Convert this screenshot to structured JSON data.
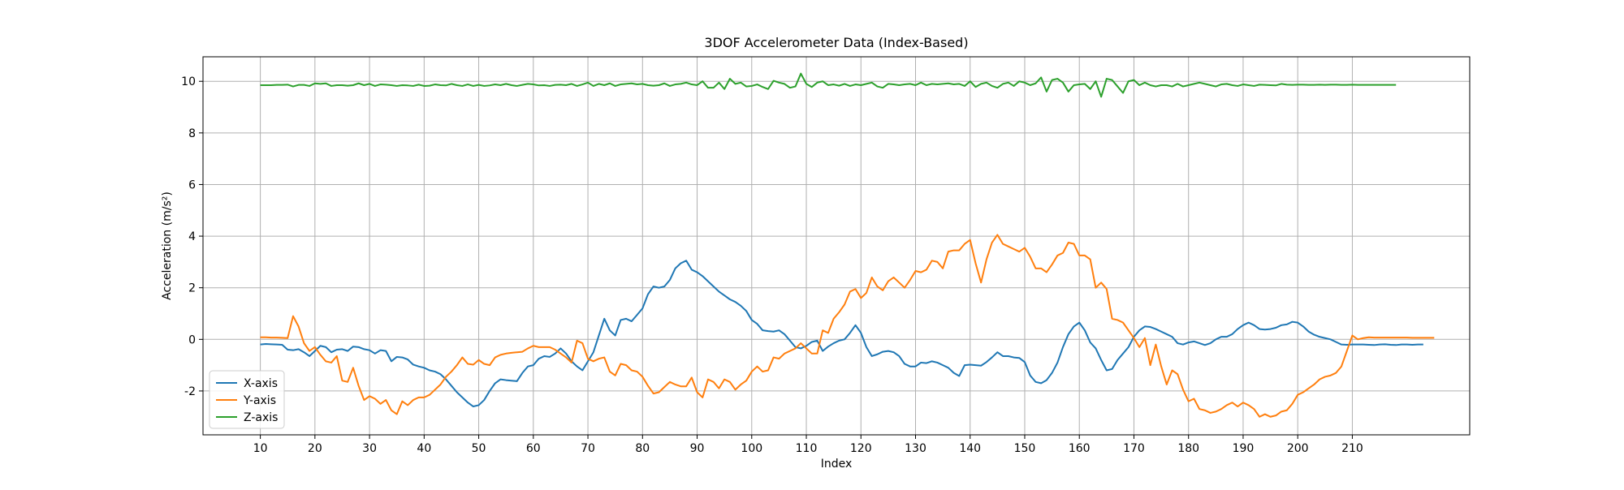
{
  "chart_data": {
    "type": "line",
    "title": "3DOF Accelerometer Data (Index-Based)",
    "xlabel": "Index",
    "ylabel": "Acceleration (m/s²)",
    "xlim": [
      -0.5,
      231.5
    ],
    "ylim": [
      -3.7,
      10.95
    ],
    "x_ticks": [
      10,
      20,
      30,
      40,
      50,
      60,
      70,
      80,
      90,
      100,
      110,
      120,
      130,
      140,
      150,
      160,
      170,
      180,
      190,
      200,
      210
    ],
    "y_ticks": [
      -2,
      0,
      2,
      4,
      6,
      8,
      10
    ],
    "grid": true,
    "legend_position": "lower-left",
    "x_start": 10,
    "series": [
      {
        "name": "X-axis",
        "color": "#1f77b4",
        "values": [
          -0.2,
          -0.18,
          -0.19,
          -0.2,
          -0.21,
          -0.4,
          -0.42,
          -0.38,
          -0.5,
          -0.65,
          -0.45,
          -0.25,
          -0.3,
          -0.5,
          -0.4,
          -0.38,
          -0.45,
          -0.28,
          -0.3,
          -0.38,
          -0.42,
          -0.55,
          -0.42,
          -0.45,
          -0.85,
          -0.68,
          -0.7,
          -0.78,
          -0.98,
          -1.05,
          -1.1,
          -1.2,
          -1.25,
          -1.35,
          -1.55,
          -1.8,
          -2.05,
          -2.25,
          -2.45,
          -2.6,
          -2.55,
          -2.35,
          -2.0,
          -1.7,
          -1.55,
          -1.58,
          -1.6,
          -1.62,
          -1.3,
          -1.05,
          -1.0,
          -0.75,
          -0.65,
          -0.68,
          -0.55,
          -0.35,
          -0.55,
          -0.85,
          -1.05,
          -1.2,
          -0.85,
          -0.5,
          0.15,
          0.8,
          0.35,
          0.15,
          0.75,
          0.8,
          0.7,
          0.95,
          1.2,
          1.75,
          2.05,
          2.0,
          2.05,
          2.3,
          2.75,
          2.95,
          3.05,
          2.7,
          2.6,
          2.45,
          2.25,
          2.05,
          1.85,
          1.7,
          1.55,
          1.45,
          1.3,
          1.1,
          0.75,
          0.6,
          0.35,
          0.32,
          0.3,
          0.35,
          0.2,
          -0.05,
          -0.3,
          -0.35,
          -0.25,
          -0.1,
          -0.05,
          -0.45,
          -0.28,
          -0.15,
          -0.05,
          0.0,
          0.25,
          0.55,
          0.25,
          -0.3,
          -0.65,
          -0.58,
          -0.48,
          -0.45,
          -0.5,
          -0.65,
          -0.95,
          -1.05,
          -1.05,
          -0.9,
          -0.92,
          -0.85,
          -0.9,
          -1.0,
          -1.1,
          -1.3,
          -1.42,
          -1.0,
          -0.98,
          -1.0,
          -1.02,
          -0.88,
          -0.7,
          -0.5,
          -0.65,
          -0.65,
          -0.7,
          -0.72,
          -0.88,
          -1.4,
          -1.65,
          -1.7,
          -1.58,
          -1.3,
          -0.9,
          -0.3,
          0.2,
          0.5,
          0.65,
          0.35,
          -0.12,
          -0.35,
          -0.8,
          -1.2,
          -1.15,
          -0.8,
          -0.55,
          -0.3,
          0.1,
          0.35,
          0.5,
          0.48,
          0.4,
          0.3,
          0.2,
          0.1,
          -0.15,
          -0.2,
          -0.12,
          -0.08,
          -0.15,
          -0.22,
          -0.15,
          0.0,
          0.1,
          0.1,
          0.2,
          0.4,
          0.55,
          0.65,
          0.55,
          0.4,
          0.38,
          0.4,
          0.45,
          0.55,
          0.58,
          0.68,
          0.65,
          0.5,
          0.3,
          0.18,
          0.1,
          0.05,
          0.0,
          -0.1,
          -0.2,
          -0.21,
          -0.2,
          -0.2,
          -0.2,
          -0.21,
          -0.22,
          -0.2,
          -0.19,
          -0.21,
          -0.22,
          -0.2,
          -0.2,
          -0.21,
          -0.2,
          -0.2
        ]
      },
      {
        "name": "Y-axis",
        "color": "#ff7f0e",
        "values": [
          0.08,
          0.08,
          0.07,
          0.07,
          0.06,
          0.05,
          0.9,
          0.5,
          -0.15,
          -0.45,
          -0.3,
          -0.6,
          -0.85,
          -0.9,
          -0.65,
          -1.6,
          -1.65,
          -1.1,
          -1.8,
          -2.35,
          -2.2,
          -2.3,
          -2.5,
          -2.35,
          -2.75,
          -2.9,
          -2.4,
          -2.55,
          -2.35,
          -2.25,
          -2.25,
          -2.15,
          -1.95,
          -1.75,
          -1.45,
          -1.25,
          -1.0,
          -0.7,
          -0.95,
          -0.98,
          -0.8,
          -0.95,
          -1.0,
          -0.7,
          -0.6,
          -0.55,
          -0.52,
          -0.5,
          -0.48,
          -0.35,
          -0.25,
          -0.3,
          -0.3,
          -0.3,
          -0.4,
          -0.55,
          -0.7,
          -0.9,
          -0.05,
          -0.15,
          -0.75,
          -0.85,
          -0.75,
          -0.7,
          -1.25,
          -1.4,
          -0.95,
          -1.0,
          -1.2,
          -1.25,
          -1.45,
          -1.8,
          -2.1,
          -2.05,
          -1.85,
          -1.65,
          -1.75,
          -1.82,
          -1.82,
          -1.48,
          -2.05,
          -2.25,
          -1.55,
          -1.65,
          -1.9,
          -1.55,
          -1.65,
          -1.95,
          -1.75,
          -1.6,
          -1.25,
          -1.05,
          -1.25,
          -1.2,
          -0.7,
          -0.75,
          -0.55,
          -0.45,
          -0.35,
          -0.15,
          -0.35,
          -0.55,
          -0.55,
          0.35,
          0.25,
          0.8,
          1.05,
          1.35,
          1.85,
          1.95,
          1.6,
          1.8,
          2.4,
          2.05,
          1.9,
          2.25,
          2.4,
          2.2,
          2.0,
          2.3,
          2.65,
          2.6,
          2.7,
          3.05,
          3.0,
          2.75,
          3.4,
          3.45,
          3.45,
          3.7,
          3.85,
          2.95,
          2.2,
          3.1,
          3.75,
          4.05,
          3.7,
          3.6,
          3.5,
          3.4,
          3.55,
          3.2,
          2.75,
          2.75,
          2.6,
          2.9,
          3.25,
          3.35,
          3.75,
          3.7,
          3.25,
          3.25,
          3.1,
          2.0,
          2.2,
          1.95,
          0.8,
          0.75,
          0.65,
          0.35,
          0.05,
          -0.3,
          0.05,
          -1.0,
          -0.2,
          -1.05,
          -1.75,
          -1.2,
          -1.35,
          -1.95,
          -2.4,
          -2.3,
          -2.7,
          -2.75,
          -2.85,
          -2.8,
          -2.7,
          -2.55,
          -2.45,
          -2.6,
          -2.45,
          -2.55,
          -2.7,
          -3.0,
          -2.9,
          -3.0,
          -2.95,
          -2.8,
          -2.75,
          -2.5,
          -2.15,
          -2.05,
          -1.9,
          -1.75,
          -1.55,
          -1.45,
          -1.4,
          -1.3,
          -1.05,
          -0.45,
          0.15,
          0.0,
          0.05,
          0.08,
          0.07,
          0.07,
          0.07,
          0.07,
          0.07,
          0.07,
          0.07,
          0.06,
          0.06,
          0.06,
          0.06,
          0.06
        ]
      },
      {
        "name": "Z-axis",
        "color": "#2ca02c",
        "values": [
          9.85,
          9.85,
          9.85,
          9.86,
          9.86,
          9.87,
          9.8,
          9.86,
          9.86,
          9.82,
          9.92,
          9.9,
          9.92,
          9.82,
          9.85,
          9.85,
          9.83,
          9.85,
          9.92,
          9.85,
          9.9,
          9.82,
          9.88,
          9.87,
          9.85,
          9.82,
          9.85,
          9.84,
          9.82,
          9.87,
          9.82,
          9.83,
          9.88,
          9.85,
          9.84,
          9.9,
          9.85,
          9.82,
          9.88,
          9.82,
          9.86,
          9.82,
          9.84,
          9.88,
          9.85,
          9.9,
          9.85,
          9.82,
          9.86,
          9.9,
          9.88,
          9.84,
          9.85,
          9.82,
          9.86,
          9.87,
          9.85,
          9.9,
          9.82,
          9.88,
          9.95,
          9.82,
          9.9,
          9.85,
          9.92,
          9.82,
          9.88,
          9.9,
          9.92,
          9.88,
          9.9,
          9.85,
          9.83,
          9.85,
          9.92,
          9.82,
          9.88,
          9.9,
          9.95,
          9.88,
          9.85,
          10.0,
          9.75,
          9.75,
          9.95,
          9.7,
          10.1,
          9.9,
          9.95,
          9.8,
          9.82,
          9.88,
          9.78,
          9.7,
          10.02,
          9.95,
          9.9,
          9.75,
          9.8,
          10.3,
          9.9,
          9.78,
          9.95,
          10.0,
          9.85,
          9.88,
          9.83,
          9.9,
          9.82,
          9.88,
          9.85,
          9.9,
          9.95,
          9.8,
          9.75,
          9.9,
          9.88,
          9.85,
          9.88,
          9.9,
          9.85,
          9.95,
          9.85,
          9.9,
          9.88,
          9.9,
          9.92,
          9.88,
          9.9,
          9.82,
          10.0,
          9.78,
          9.9,
          9.95,
          9.82,
          9.75,
          9.9,
          9.95,
          9.82,
          10.0,
          9.95,
          9.85,
          9.92,
          10.15,
          9.6,
          10.05,
          10.1,
          9.95,
          9.6,
          9.85,
          9.88,
          9.9,
          9.7,
          10.0,
          9.4,
          10.1,
          10.05,
          9.8,
          9.55,
          10.0,
          10.05,
          9.85,
          9.95,
          9.85,
          9.8,
          9.85,
          9.85,
          9.8,
          9.9,
          9.8,
          9.85,
          9.9,
          9.95,
          9.9,
          9.85,
          9.8,
          9.88,
          9.9,
          9.85,
          9.82,
          9.88,
          9.85,
          9.82,
          9.87,
          9.86,
          9.85,
          9.84,
          9.9,
          9.87,
          9.86,
          9.87,
          9.87,
          9.86,
          9.86,
          9.87,
          9.86,
          9.87,
          9.87,
          9.86,
          9.86,
          9.87,
          9.86,
          9.86,
          9.86,
          9.86,
          9.86,
          9.86,
          9.86,
          9.86
        ]
      }
    ]
  }
}
